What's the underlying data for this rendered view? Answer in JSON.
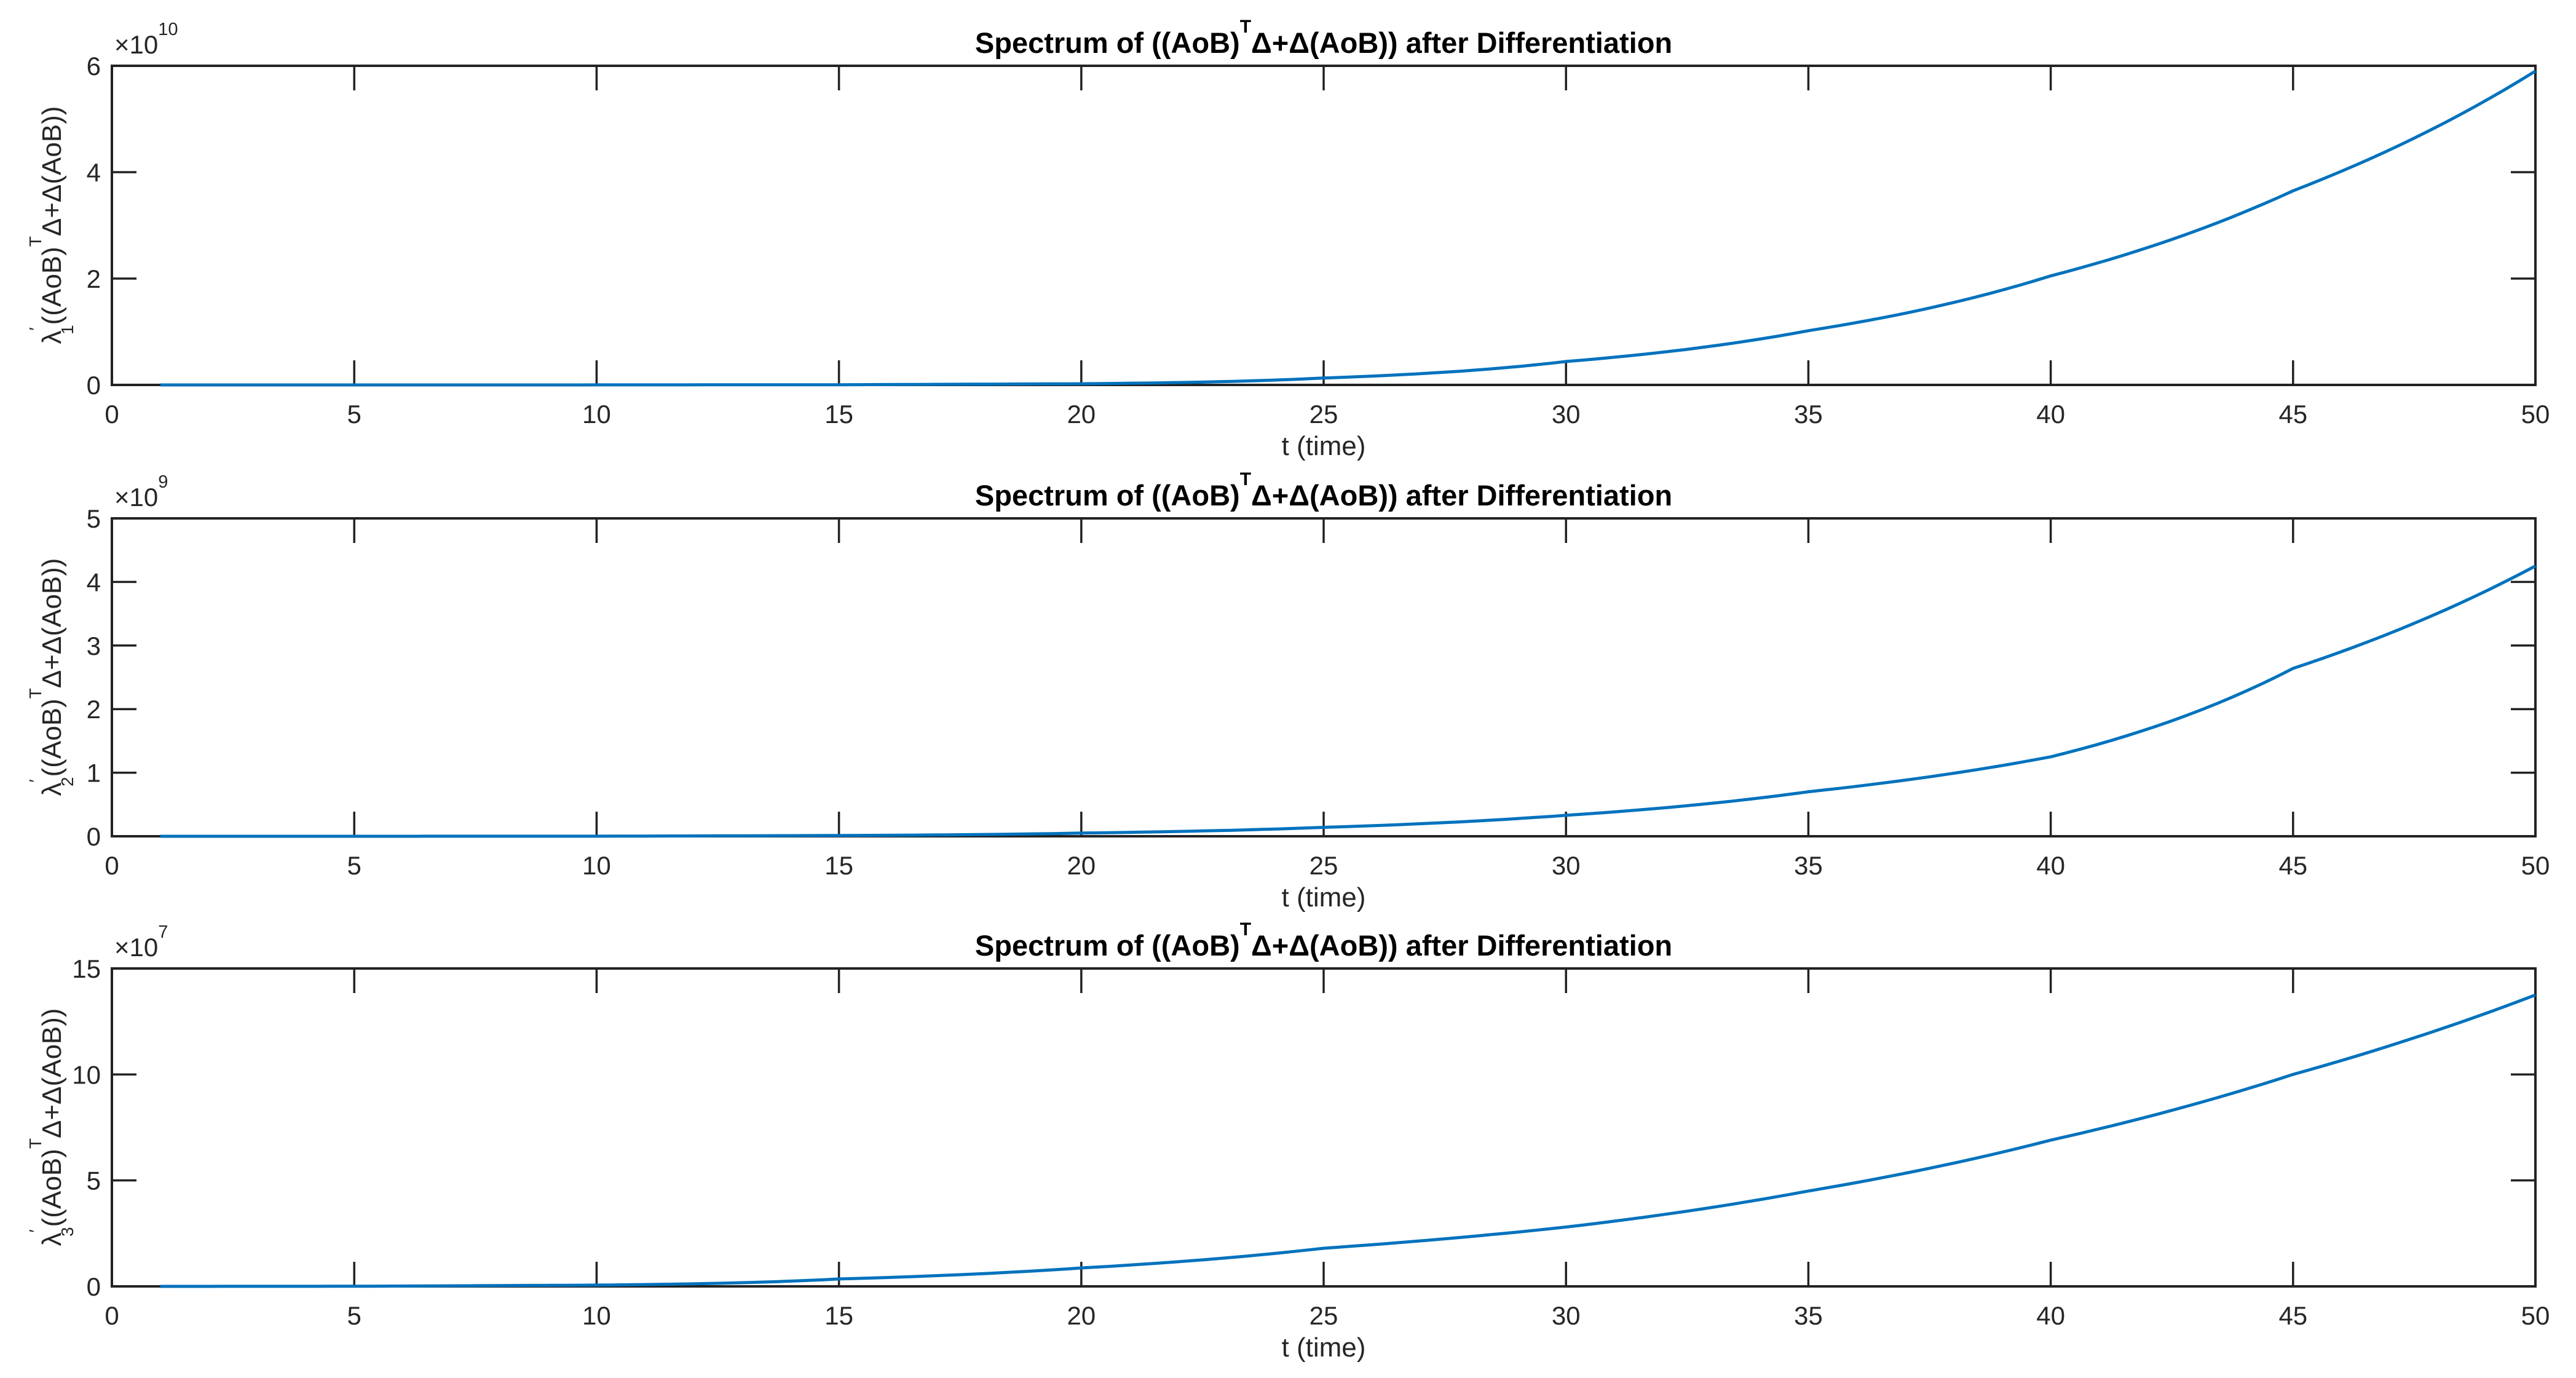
{
  "figure": {
    "background": "#ffffff",
    "axis_color": "#222222",
    "text_color": "#262626",
    "line_color": "#0072BD"
  },
  "chart_data": [
    {
      "type": "line",
      "title": {
        "pre": "Spectrum of ((AoB)",
        "sup": "T",
        "post": "Δ+Δ(AoB)) after Differentiation"
      },
      "ylabel": {
        "lambda": "λ",
        "prime": "′",
        "sub": "1",
        "open": "((AoB)",
        "sup": "T",
        "tail": "Δ+Δ(AoB))"
      },
      "y_multiplier": {
        "base": "×10",
        "exp": "10"
      },
      "xlabel": "t (time)",
      "xlim": [
        0,
        50
      ],
      "ylim": [
        0,
        60000000000
      ],
      "xticks": [
        0,
        5,
        10,
        15,
        20,
        25,
        30,
        35,
        40,
        45,
        50
      ],
      "yticks": [
        0,
        2,
        4,
        6
      ],
      "x": [
        1,
        5,
        10,
        15,
        20,
        25,
        30,
        35,
        40,
        45,
        50
      ],
      "y": [
        0,
        0.0001,
        0.0006,
        0.0035,
        0.022,
        0.13,
        0.44,
        1.02,
        2.05,
        3.65,
        5.9
      ],
      "legend": null,
      "grid": false
    },
    {
      "type": "line",
      "title": {
        "pre": "Spectrum of ((AoB)",
        "sup": "T",
        "post": "Δ+Δ(AoB)) after Differentiation"
      },
      "ylabel": {
        "lambda": "λ",
        "prime": "′",
        "sub": "2",
        "open": "((AoB)",
        "sup": "T",
        "tail": "Δ+Δ(AoB))"
      },
      "y_multiplier": {
        "base": "×10",
        "exp": "9"
      },
      "xlabel": "t (time)",
      "xlim": [
        0,
        50
      ],
      "ylim": [
        0,
        5000000000
      ],
      "xticks": [
        0,
        5,
        10,
        15,
        20,
        25,
        30,
        35,
        40,
        45,
        50
      ],
      "yticks": [
        0,
        1,
        2,
        3,
        4,
        5
      ],
      "x": [
        1,
        5,
        10,
        15,
        20,
        25,
        30,
        35,
        40,
        45,
        50
      ],
      "y": [
        0,
        0.0002,
        0.0012,
        0.012,
        0.05,
        0.14,
        0.33,
        0.7,
        1.25,
        2.64,
        4.25
      ],
      "legend": null,
      "grid": false
    },
    {
      "type": "line",
      "title": {
        "pre": "Spectrum of ((AoB)",
        "sup": "T",
        "post": "Δ+Δ(AoB)) after Differentiation"
      },
      "ylabel": {
        "lambda": "λ",
        "prime": "′",
        "sub": "3",
        "open": "((AoB)",
        "sup": "T",
        "tail": "Δ+Δ(AoB))"
      },
      "y_multiplier": {
        "base": "×10",
        "exp": "7"
      },
      "xlabel": "t (time)",
      "xlim": [
        0,
        50
      ],
      "ylim": [
        0,
        150000000
      ],
      "xticks": [
        0,
        5,
        10,
        15,
        20,
        25,
        30,
        35,
        40,
        45,
        50
      ],
      "yticks": [
        0,
        5,
        10,
        15
      ],
      "x": [
        1,
        5,
        10,
        15,
        20,
        25,
        30,
        35,
        40,
        45,
        50
      ],
      "y": [
        0,
        0.005,
        0.06,
        0.35,
        0.87,
        1.8,
        2.8,
        4.5,
        6.9,
        10.0,
        13.75
      ],
      "legend": null,
      "grid": false
    }
  ]
}
